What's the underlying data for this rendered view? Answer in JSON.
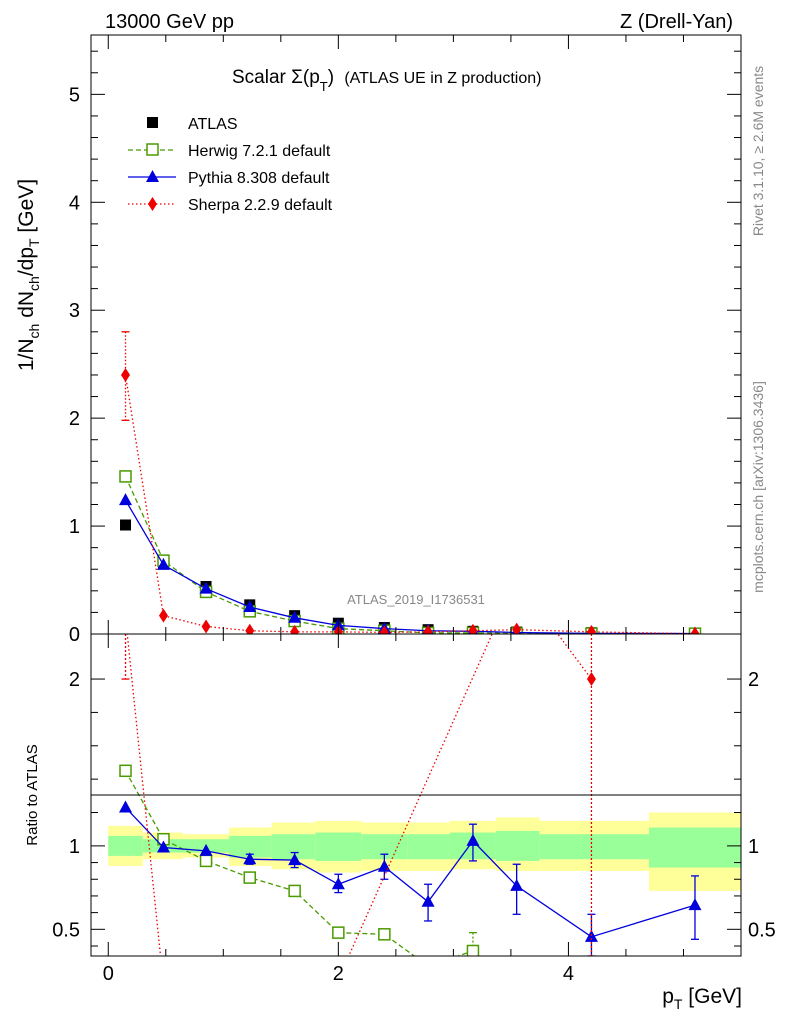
{
  "header": {
    "left": "13000 GeV pp",
    "right": "Z (Drell-Yan)"
  },
  "title": {
    "main": "Scalar Σ(p",
    "sub": "T",
    "close": ")",
    "suffix": "(ATLAS UE in Z production)"
  },
  "analysis_id": "ATLAS_2019_I1736531",
  "side_labels": {
    "rivet": "Rivet 3.1.10, ≥ 2.6M events",
    "mcplots": "mcplots.cern.ch [arXiv:1306.3436]"
  },
  "axes": {
    "y_main_label": "1/N_ch dN_ch/dp_T [GeV]",
    "y_ratio_label": "Ratio to ATLAS",
    "x_label": "p_T [GeV]"
  },
  "legend": [
    {
      "label": "ATLAS",
      "color": "#000000",
      "marker": "square-filled"
    },
    {
      "label": "Herwig 7.2.1 default",
      "color": "#4a9a00",
      "marker": "square-open",
      "line": "dashed"
    },
    {
      "label": "Pythia 8.308 default",
      "color": "#0000dd",
      "marker": "triangle",
      "line": "solid"
    },
    {
      "label": "Sherpa 2.2.9 default",
      "color": "#ee0000",
      "marker": "diamond",
      "line": "dotted"
    }
  ],
  "chart_data": {
    "type": "line",
    "x_range": [
      -0.15,
      5.5
    ],
    "x_ticks": [
      0,
      2,
      4
    ],
    "main": {
      "ylim": [
        0,
        5.55
      ],
      "y_ticks": [
        0,
        1,
        2,
        3,
        4,
        5
      ],
      "series": [
        {
          "name": "ATLAS",
          "x": [
            0.15,
            0.48,
            0.85,
            1.23,
            1.62,
            2.0,
            2.4,
            2.78,
            3.17,
            3.55,
            4.2,
            5.1
          ],
          "y": [
            1.01,
            0.65,
            0.44,
            0.27,
            0.17,
            0.1,
            0.06,
            0.04,
            0.025,
            0.018,
            0.012,
            0.006
          ]
        },
        {
          "name": "Herwig 7.2.1 default",
          "x": [
            0.15,
            0.48,
            0.85,
            1.23,
            1.62,
            2.0,
            2.4,
            2.78,
            3.17,
            3.55,
            4.2,
            5.1
          ],
          "y": [
            1.46,
            0.68,
            0.39,
            0.21,
            0.12,
            0.05,
            0.03,
            0.01,
            0.01,
            0.005,
            0.004,
            0.003
          ]
        },
        {
          "name": "Pythia 8.308 default",
          "x": [
            0.15,
            0.48,
            0.85,
            1.23,
            1.62,
            2.0,
            2.4,
            2.78,
            3.17,
            3.55,
            4.2,
            5.1
          ],
          "y": [
            1.24,
            0.64,
            0.42,
            0.25,
            0.15,
            0.08,
            0.05,
            0.03,
            0.025,
            0.014,
            0.006,
            0.004
          ]
        },
        {
          "name": "Sherpa 2.2.9 default",
          "x": [
            0.15,
            0.48,
            0.85,
            1.23,
            1.62,
            2.0,
            2.4,
            2.78,
            3.17,
            3.55,
            4.2,
            5.1
          ],
          "y": [
            2.4,
            0.17,
            0.07,
            0.03,
            0.02,
            0.02,
            0.015,
            0.02,
            0.03,
            0.04,
            0.02,
            0.002
          ],
          "err_top": [
            2.8,
            null,
            null,
            null,
            null,
            null,
            null,
            null,
            null,
            null,
            null,
            null
          ],
          "err_bot": [
            1.98,
            null,
            null,
            null,
            null,
            null,
            null,
            null,
            null,
            null,
            null,
            null
          ]
        }
      ]
    },
    "ratio": {
      "ylim": [
        0.34,
        2.27
      ],
      "y_ticks": [
        0.5,
        1,
        2
      ],
      "reference_line": 1,
      "bands": {
        "x_edges": [
          0.0,
          0.3,
          0.65,
          1.05,
          1.42,
          1.8,
          2.2,
          2.6,
          2.97,
          3.37,
          3.75,
          4.7,
          5.5
        ],
        "outer_lo": [
          0.88,
          0.92,
          0.93,
          0.88,
          0.86,
          0.84,
          0.85,
          0.85,
          0.86,
          0.85,
          0.85,
          0.73
        ],
        "outer_hi": [
          1.12,
          1.08,
          1.07,
          1.11,
          1.14,
          1.15,
          1.14,
          1.14,
          1.15,
          1.17,
          1.15,
          1.2
        ],
        "inner_lo": [
          0.94,
          0.96,
          0.96,
          0.93,
          0.92,
          0.91,
          0.92,
          0.92,
          0.92,
          0.91,
          0.92,
          0.87
        ],
        "inner_hi": [
          1.06,
          1.04,
          1.04,
          1.06,
          1.07,
          1.08,
          1.07,
          1.07,
          1.08,
          1.09,
          1.07,
          1.11
        ]
      },
      "series": [
        {
          "name": "Herwig 7.2.1 default",
          "x": [
            0.15,
            0.48,
            0.85,
            1.23,
            1.62,
            2.0,
            2.4,
            2.78,
            3.17
          ],
          "y": [
            1.45,
            1.04,
            0.91,
            0.81,
            0.73,
            0.48,
            0.47,
            0.28,
            0.37
          ],
          "err_lo": [
            null,
            null,
            null,
            null,
            0.7,
            0.46,
            0.44,
            null,
            0.35
          ],
          "err_hi": [
            null,
            null,
            null,
            null,
            0.76,
            0.51,
            0.5,
            null,
            0.48
          ]
        },
        {
          "name": "Pythia 8.308 default",
          "x": [
            0.15,
            0.48,
            0.85,
            1.23,
            1.62,
            2.0,
            2.4,
            2.78,
            3.17,
            3.55,
            4.2,
            5.1
          ],
          "y": [
            1.23,
            0.99,
            0.97,
            0.92,
            0.915,
            0.77,
            0.875,
            0.665,
            1.03,
            0.76,
            0.455,
            0.645
          ],
          "err_lo": [
            null,
            null,
            null,
            0.89,
            0.87,
            0.72,
            0.8,
            0.55,
            0.91,
            0.59,
            0.34,
            0.44
          ],
          "err_hi": [
            null,
            null,
            null,
            0.95,
            0.96,
            0.83,
            0.95,
            0.77,
            1.13,
            0.89,
            0.59,
            0.82
          ]
        },
        {
          "name": "Sherpa 2.2.9 default",
          "x": [
            0.15,
            0.48,
            2.0,
            3.55,
            4.2
          ],
          "y": [
            2.37,
            0.17,
            0.2,
            2.6,
            2.0
          ],
          "err_lo": [
            2.0,
            null,
            null,
            null,
            0.3
          ],
          "err_hi": [
            2.6,
            null,
            null,
            null,
            2.3
          ]
        }
      ]
    }
  }
}
